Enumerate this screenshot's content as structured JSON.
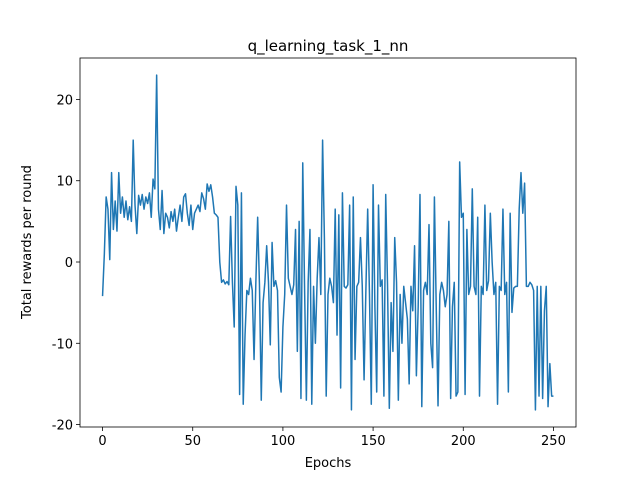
{
  "chart_data": {
    "type": "line",
    "title": "q_learning_task_1_nn",
    "x_label": "Epochs",
    "y_label": "Total rewards per round",
    "x": [
      0,
      1,
      2,
      3,
      4,
      5,
      6,
      7,
      8,
      9,
      10,
      11,
      12,
      13,
      14,
      15,
      16,
      17,
      18,
      19,
      20,
      21,
      22,
      23,
      24,
      25,
      26,
      27,
      28,
      29,
      30,
      31,
      32,
      33,
      34,
      35,
      36,
      37,
      38,
      39,
      40,
      41,
      42,
      43,
      44,
      45,
      46,
      47,
      48,
      49,
      50,
      51,
      52,
      53,
      54,
      55,
      56,
      57,
      58,
      59,
      60,
      61,
      62,
      63,
      64,
      65,
      66,
      67,
      68,
      69,
      70,
      71,
      72,
      73,
      74,
      75,
      76,
      77,
      78,
      79,
      80,
      81,
      82,
      83,
      84,
      85,
      86,
      87,
      88,
      89,
      90,
      91,
      92,
      93,
      94,
      95,
      96,
      97,
      98,
      99,
      100,
      101,
      102,
      103,
      104,
      105,
      106,
      107,
      108,
      109,
      110,
      111,
      112,
      113,
      114,
      115,
      116,
      117,
      118,
      119,
      120,
      121,
      122,
      123,
      124,
      125,
      126,
      127,
      128,
      129,
      130,
      131,
      132,
      133,
      134,
      135,
      136,
      137,
      138,
      139,
      140,
      141,
      142,
      143,
      144,
      145,
      146,
      147,
      148,
      149,
      150,
      151,
      152,
      153,
      154,
      155,
      156,
      157,
      158,
      159,
      160,
      161,
      162,
      163,
      164,
      165,
      166,
      167,
      168,
      169,
      170,
      171,
      172,
      173,
      174,
      175,
      176,
      177,
      178,
      179,
      180,
      181,
      182,
      183,
      184,
      185,
      186,
      187,
      188,
      189,
      190,
      191,
      192,
      193,
      194,
      195,
      196,
      197,
      198,
      199,
      200,
      201,
      202,
      203,
      204,
      205,
      206,
      207,
      208,
      209,
      210,
      211,
      212,
      213,
      214,
      215,
      216,
      217,
      218,
      219,
      220,
      221,
      222,
      223,
      224,
      225,
      226,
      227,
      228,
      229,
      230,
      231,
      232,
      233,
      234,
      235,
      236,
      237,
      238,
      239,
      240,
      241,
      242,
      243,
      244,
      245,
      246,
      247,
      248,
      249,
      250
    ],
    "series": [
      {
        "name": "rewards",
        "color": "#1f77b4",
        "values": [
          -4.2,
          1,
          8,
          6.5,
          0.3,
          11,
          4,
          7.5,
          3.8,
          11,
          6,
          8,
          5.5,
          7.5,
          5.2,
          6.8,
          5,
          15,
          7,
          3.5,
          8.2,
          7,
          8.3,
          6.5,
          8,
          7.2,
          8.5,
          5.5,
          10.2,
          9,
          23,
          6.5,
          4,
          8.8,
          3.5,
          6,
          5.5,
          4.2,
          6.2,
          5,
          6.5,
          3.8,
          5.5,
          7,
          5,
          8,
          8.4,
          6,
          4.5,
          7,
          4,
          6,
          6.5,
          7,
          6.2,
          8.5,
          7.8,
          6.5,
          9.6,
          8.7,
          9.5,
          8,
          6,
          5.8,
          5.5,
          0,
          -2.5,
          -2.2,
          -2.7,
          -2.4,
          -2.8,
          5.6,
          -2.5,
          -8,
          9.3,
          7,
          -16.3,
          8.5,
          -17.5,
          -9,
          -3.5,
          -4,
          -2,
          -3.5,
          -12,
          -2.5,
          5.5,
          -2.8,
          -17,
          -5,
          -2.5,
          2,
          -2.5,
          -10.2,
          2.4,
          -3,
          -2.3,
          -3.5,
          -14.2,
          -16,
          -8,
          -4,
          7,
          -2,
          -3,
          -4,
          -2.8,
          4,
          -11,
          5,
          -16.8,
          12.2,
          -3,
          -17,
          -2.5,
          4,
          -17.5,
          -3,
          -10,
          -2,
          3,
          -4,
          15,
          3,
          -16.5,
          -4,
          -2,
          -3,
          -5,
          6.5,
          -9,
          5.8,
          -15.5,
          8.5,
          -3,
          -3.2,
          -2.8,
          7,
          -18.2,
          8,
          -12,
          -3,
          -2.5,
          3,
          -3,
          -14.5,
          -3.5,
          6.5,
          -4,
          -17.5,
          9.5,
          -5.5,
          -16,
          7,
          -3,
          -2.2,
          -16.5,
          8.3,
          -2.8,
          -18,
          -5,
          -11,
          3,
          -2.5,
          -17,
          -4,
          -10,
          -3,
          -5,
          -7,
          -15,
          -3,
          -6,
          2,
          -14,
          -5.5,
          8.3,
          -17.8,
          -3.5,
          -2.5,
          -4,
          4.6,
          -10,
          -13,
          8,
          -5.5,
          -17.7,
          -4,
          -2.5,
          -3.5,
          -5.5,
          -4,
          5,
          -16.8,
          -5.5,
          -2.5,
          -16.5,
          -16,
          12.3,
          5.5,
          6,
          -16.3,
          4,
          -4,
          -3,
          9,
          -3,
          -4,
          5.5,
          -16.5,
          -3,
          -4,
          7,
          -3.5,
          -2.3,
          6,
          0,
          -4,
          -2.5,
          -17.5,
          -3,
          -3.5,
          6.5,
          -4,
          -2.5,
          -16,
          6,
          -6.2,
          -3.2,
          -3,
          -3,
          6.5,
          11,
          6,
          9.7,
          -3,
          -3,
          -2.5,
          -2.8,
          -3.5,
          -18.2,
          -3,
          -16.5,
          -3,
          -16.8,
          -6,
          -3,
          -17.8,
          -12.5,
          -16.5,
          -16.5
        ]
      }
    ],
    "xlim": [
      -12.5,
      262.5
    ],
    "ylim": [
      -20.3,
      25.1
    ],
    "xticks": [
      0,
      50,
      100,
      150,
      200,
      250
    ],
    "yticks": [
      -20,
      -10,
      0,
      10,
      20
    ]
  }
}
